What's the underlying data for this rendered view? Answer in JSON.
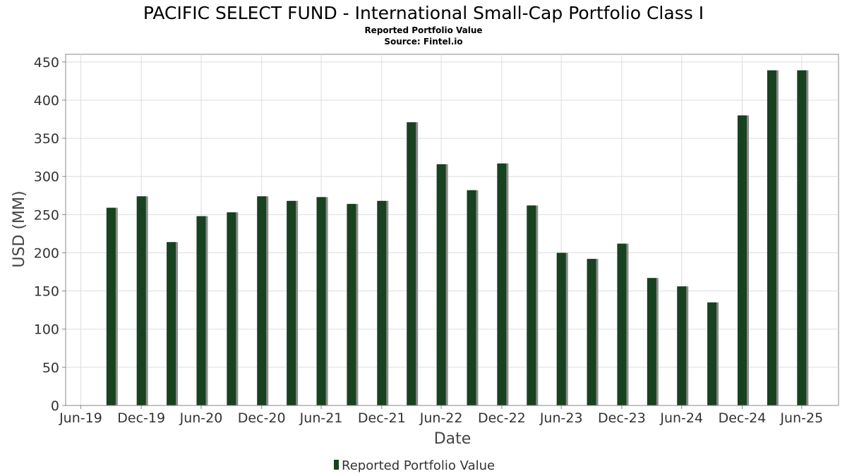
{
  "chart_data": {
    "type": "bar",
    "title": "PACIFIC SELECT FUND - International Small-Cap Portfolio Class I",
    "subtitle": "Reported Portfolio Value",
    "source": "Source: Fintel.io",
    "xlabel": "Date",
    "ylabel": "USD (MM)",
    "ylim": [
      0,
      460
    ],
    "yticks": [
      0,
      50,
      100,
      150,
      200,
      250,
      300,
      350,
      400,
      450
    ],
    "xlim": [
      "2019-05-15",
      "2025-10-20"
    ],
    "xticks": [
      {
        "date": "2019-06-30",
        "label": "Jun-19"
      },
      {
        "date": "2019-12-31",
        "label": "Dec-19"
      },
      {
        "date": "2020-06-30",
        "label": "Jun-20"
      },
      {
        "date": "2020-12-31",
        "label": "Dec-20"
      },
      {
        "date": "2021-06-30",
        "label": "Jun-21"
      },
      {
        "date": "2021-12-31",
        "label": "Dec-21"
      },
      {
        "date": "2022-06-30",
        "label": "Jun-22"
      },
      {
        "date": "2022-12-31",
        "label": "Dec-22"
      },
      {
        "date": "2023-06-30",
        "label": "Jun-23"
      },
      {
        "date": "2023-12-31",
        "label": "Dec-23"
      },
      {
        "date": "2024-06-30",
        "label": "Jun-24"
      },
      {
        "date": "2024-12-31",
        "label": "Dec-24"
      },
      {
        "date": "2025-06-30",
        "label": "Jun-25"
      }
    ],
    "grid": true,
    "legend_position": "bottom",
    "series": [
      {
        "name": "Reported Portfolio Value",
        "color": "#17411f",
        "points": [
          {
            "date": "2019-09-30",
            "value": 259
          },
          {
            "date": "2019-12-31",
            "value": 274
          },
          {
            "date": "2020-03-31",
            "value": 214
          },
          {
            "date": "2020-06-30",
            "value": 248
          },
          {
            "date": "2020-09-30",
            "value": 253
          },
          {
            "date": "2020-12-31",
            "value": 274
          },
          {
            "date": "2021-03-31",
            "value": 268
          },
          {
            "date": "2021-06-30",
            "value": 273
          },
          {
            "date": "2021-09-30",
            "value": 264
          },
          {
            "date": "2021-12-31",
            "value": 268
          },
          {
            "date": "2022-03-31",
            "value": 371
          },
          {
            "date": "2022-06-30",
            "value": 316
          },
          {
            "date": "2022-09-30",
            "value": 282
          },
          {
            "date": "2022-12-31",
            "value": 317
          },
          {
            "date": "2023-03-31",
            "value": 262
          },
          {
            "date": "2023-06-30",
            "value": 200
          },
          {
            "date": "2023-09-30",
            "value": 192
          },
          {
            "date": "2023-12-31",
            "value": 212
          },
          {
            "date": "2024-03-31",
            "value": 167
          },
          {
            "date": "2024-06-30",
            "value": 156
          },
          {
            "date": "2024-09-30",
            "value": 135
          },
          {
            "date": "2024-12-31",
            "value": 380
          },
          {
            "date": "2025-03-31",
            "value": 439
          },
          {
            "date": "2025-06-30",
            "value": 439
          }
        ]
      }
    ]
  }
}
